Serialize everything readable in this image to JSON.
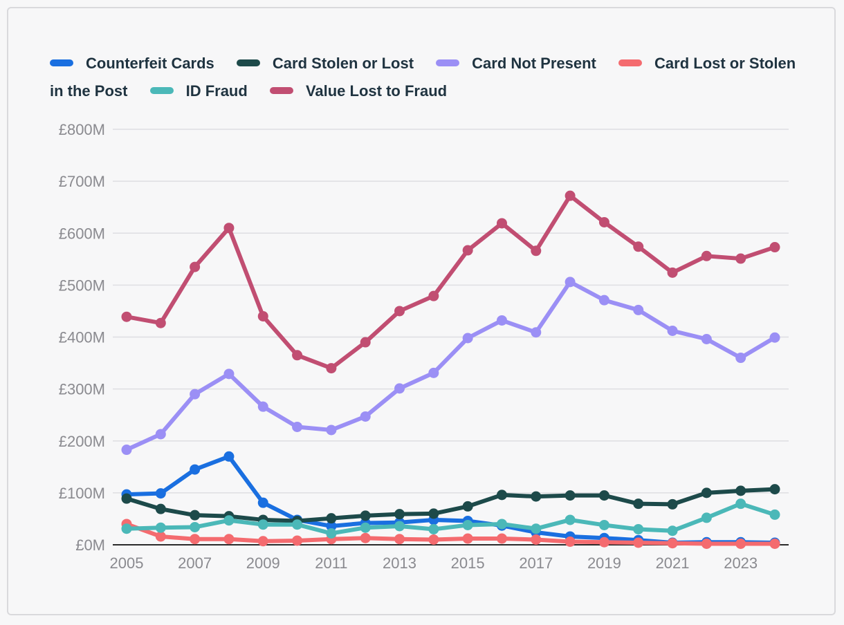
{
  "colors": {
    "grid": "#dedee2",
    "axis": "#2a2a2a"
  },
  "chart_data": {
    "type": "line",
    "title": "",
    "xlabel": "",
    "ylabel": "",
    "x": [
      2005,
      2006,
      2007,
      2008,
      2009,
      2010,
      2011,
      2012,
      2013,
      2014,
      2015,
      2016,
      2017,
      2018,
      2019,
      2020,
      2021,
      2022,
      2023,
      2024
    ],
    "ylim": [
      0,
      800
    ],
    "y_ticks": [
      0,
      100,
      200,
      300,
      400,
      500,
      600,
      700,
      800
    ],
    "y_tick_labels": [
      "£0M",
      "£100M",
      "£200M",
      "£300M",
      "£400M",
      "£500M",
      "£600M",
      "£700M",
      "£800M"
    ],
    "x_ticks": [
      2005,
      2007,
      2009,
      2011,
      2013,
      2015,
      2017,
      2019,
      2021,
      2023
    ],
    "x_tick_labels": [
      "2005",
      "2007",
      "2009",
      "2011",
      "2013",
      "2015",
      "2017",
      "2019",
      "2021",
      "2023"
    ],
    "legend_position": "top",
    "series": [
      {
        "name": "Counterfeit Cards",
        "color": "#1a6fe0",
        "values": [
          97,
          99,
          145,
          170,
          81,
          48,
          36,
          42,
          43,
          48,
          46,
          37,
          24,
          16,
          13,
          9,
          4,
          5,
          5,
          4
        ]
      },
      {
        "name": "Card Stolen or Lost",
        "color": "#1d4a4a",
        "values": [
          89,
          69,
          57,
          55,
          48,
          46,
          51,
          56,
          59,
          60,
          74,
          96,
          93,
          95,
          95,
          79,
          78,
          100,
          104,
          107
        ]
      },
      {
        "name": "Card Not Present",
        "color": "#9b8ff5",
        "values": [
          183,
          213,
          290,
          329,
          266,
          227,
          221,
          247,
          301,
          331,
          398,
          432,
          409,
          506,
          471,
          452,
          412,
          396,
          360,
          399
        ]
      },
      {
        "name": "Card Lost or Stolen in the Post",
        "color": "#f46b6f",
        "values": [
          40,
          16,
          11,
          11,
          7,
          8,
          11,
          13,
          11,
          10,
          12,
          12,
          10,
          6,
          5,
          4,
          3,
          2,
          2,
          2
        ]
      },
      {
        "name": "ID Fraud",
        "color": "#4bb8b8",
        "values": [
          31,
          33,
          34,
          47,
          39,
          39,
          22,
          33,
          36,
          30,
          38,
          40,
          31,
          48,
          38,
          30,
          27,
          52,
          79,
          58
        ]
      },
      {
        "name": "Value Lost to Fraud",
        "color": "#c14e72",
        "values": [
          439,
          427,
          535,
          610,
          440,
          365,
          340,
          390,
          450,
          479,
          567,
          619,
          566,
          672,
          621,
          574,
          524,
          556,
          551,
          573
        ]
      }
    ]
  }
}
